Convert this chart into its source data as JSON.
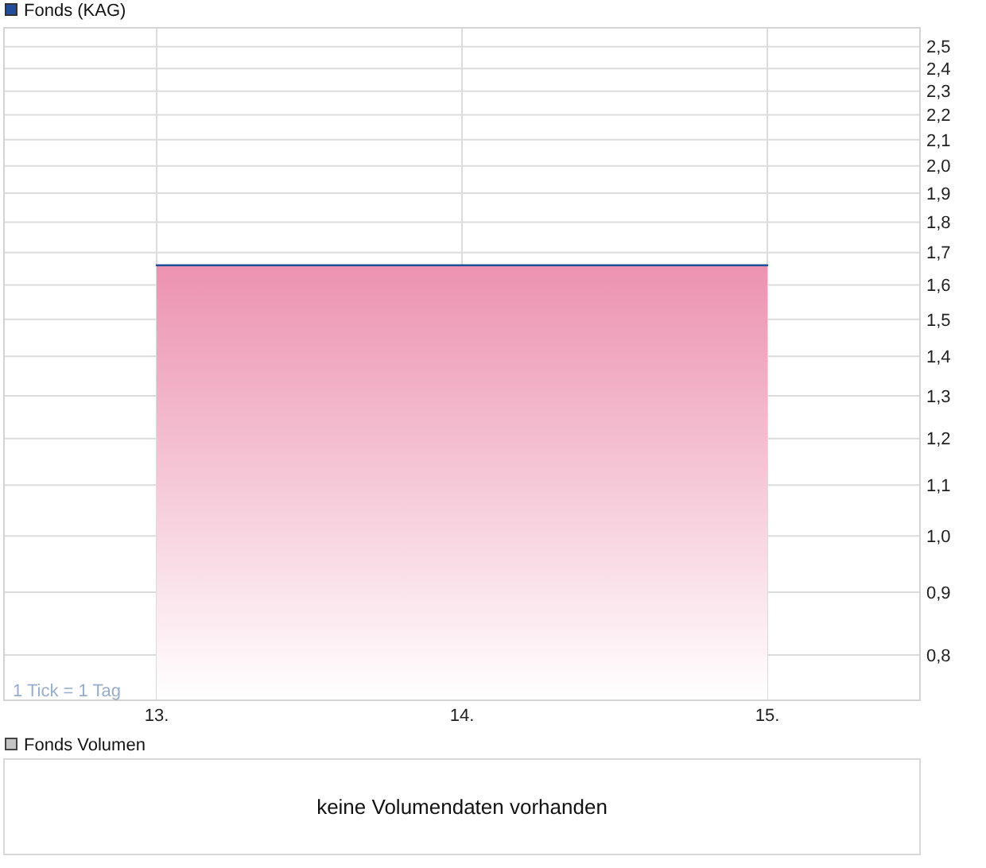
{
  "chart_data": [
    {
      "type": "area",
      "categories": [
        "13.",
        "14.",
        "15."
      ],
      "series": [
        {
          "name": "Fonds (KAG)",
          "color": "#1f4e9a",
          "values": [
            1.66,
            1.66,
            1.66
          ]
        }
      ],
      "ylim": [
        0.735,
        2.59
      ],
      "yticks": [
        {
          "value": 0.8,
          "label": "0,8"
        },
        {
          "value": 0.9,
          "label": "0,9"
        },
        {
          "value": 1.0,
          "label": "1,0"
        },
        {
          "value": 1.1,
          "label": "1,1"
        },
        {
          "value": 1.2,
          "label": "1,2"
        },
        {
          "value": 1.3,
          "label": "1,3"
        },
        {
          "value": 1.4,
          "label": "1,4"
        },
        {
          "value": 1.5,
          "label": "1,5"
        },
        {
          "value": 1.6,
          "label": "1,6"
        },
        {
          "value": 1.7,
          "label": "1,7"
        },
        {
          "value": 1.8,
          "label": "1,8"
        },
        {
          "value": 1.9,
          "label": "1,9"
        },
        {
          "value": 2.0,
          "label": "2,0"
        },
        {
          "value": 2.1,
          "label": "2,1"
        },
        {
          "value": 2.2,
          "label": "2,2"
        },
        {
          "value": 2.3,
          "label": "2,3"
        },
        {
          "value": 2.4,
          "label": "2,4"
        },
        {
          "value": 2.5,
          "label": "2,5"
        }
      ],
      "log": "y",
      "grid": true,
      "legend": "top left",
      "annotations": [
        "1 Tick = 1 Tag"
      ]
    },
    {
      "type": "other",
      "title": "Fonds Volumen",
      "annotations": [
        "keine Volumendaten vorhanden"
      ]
    }
  ]
}
